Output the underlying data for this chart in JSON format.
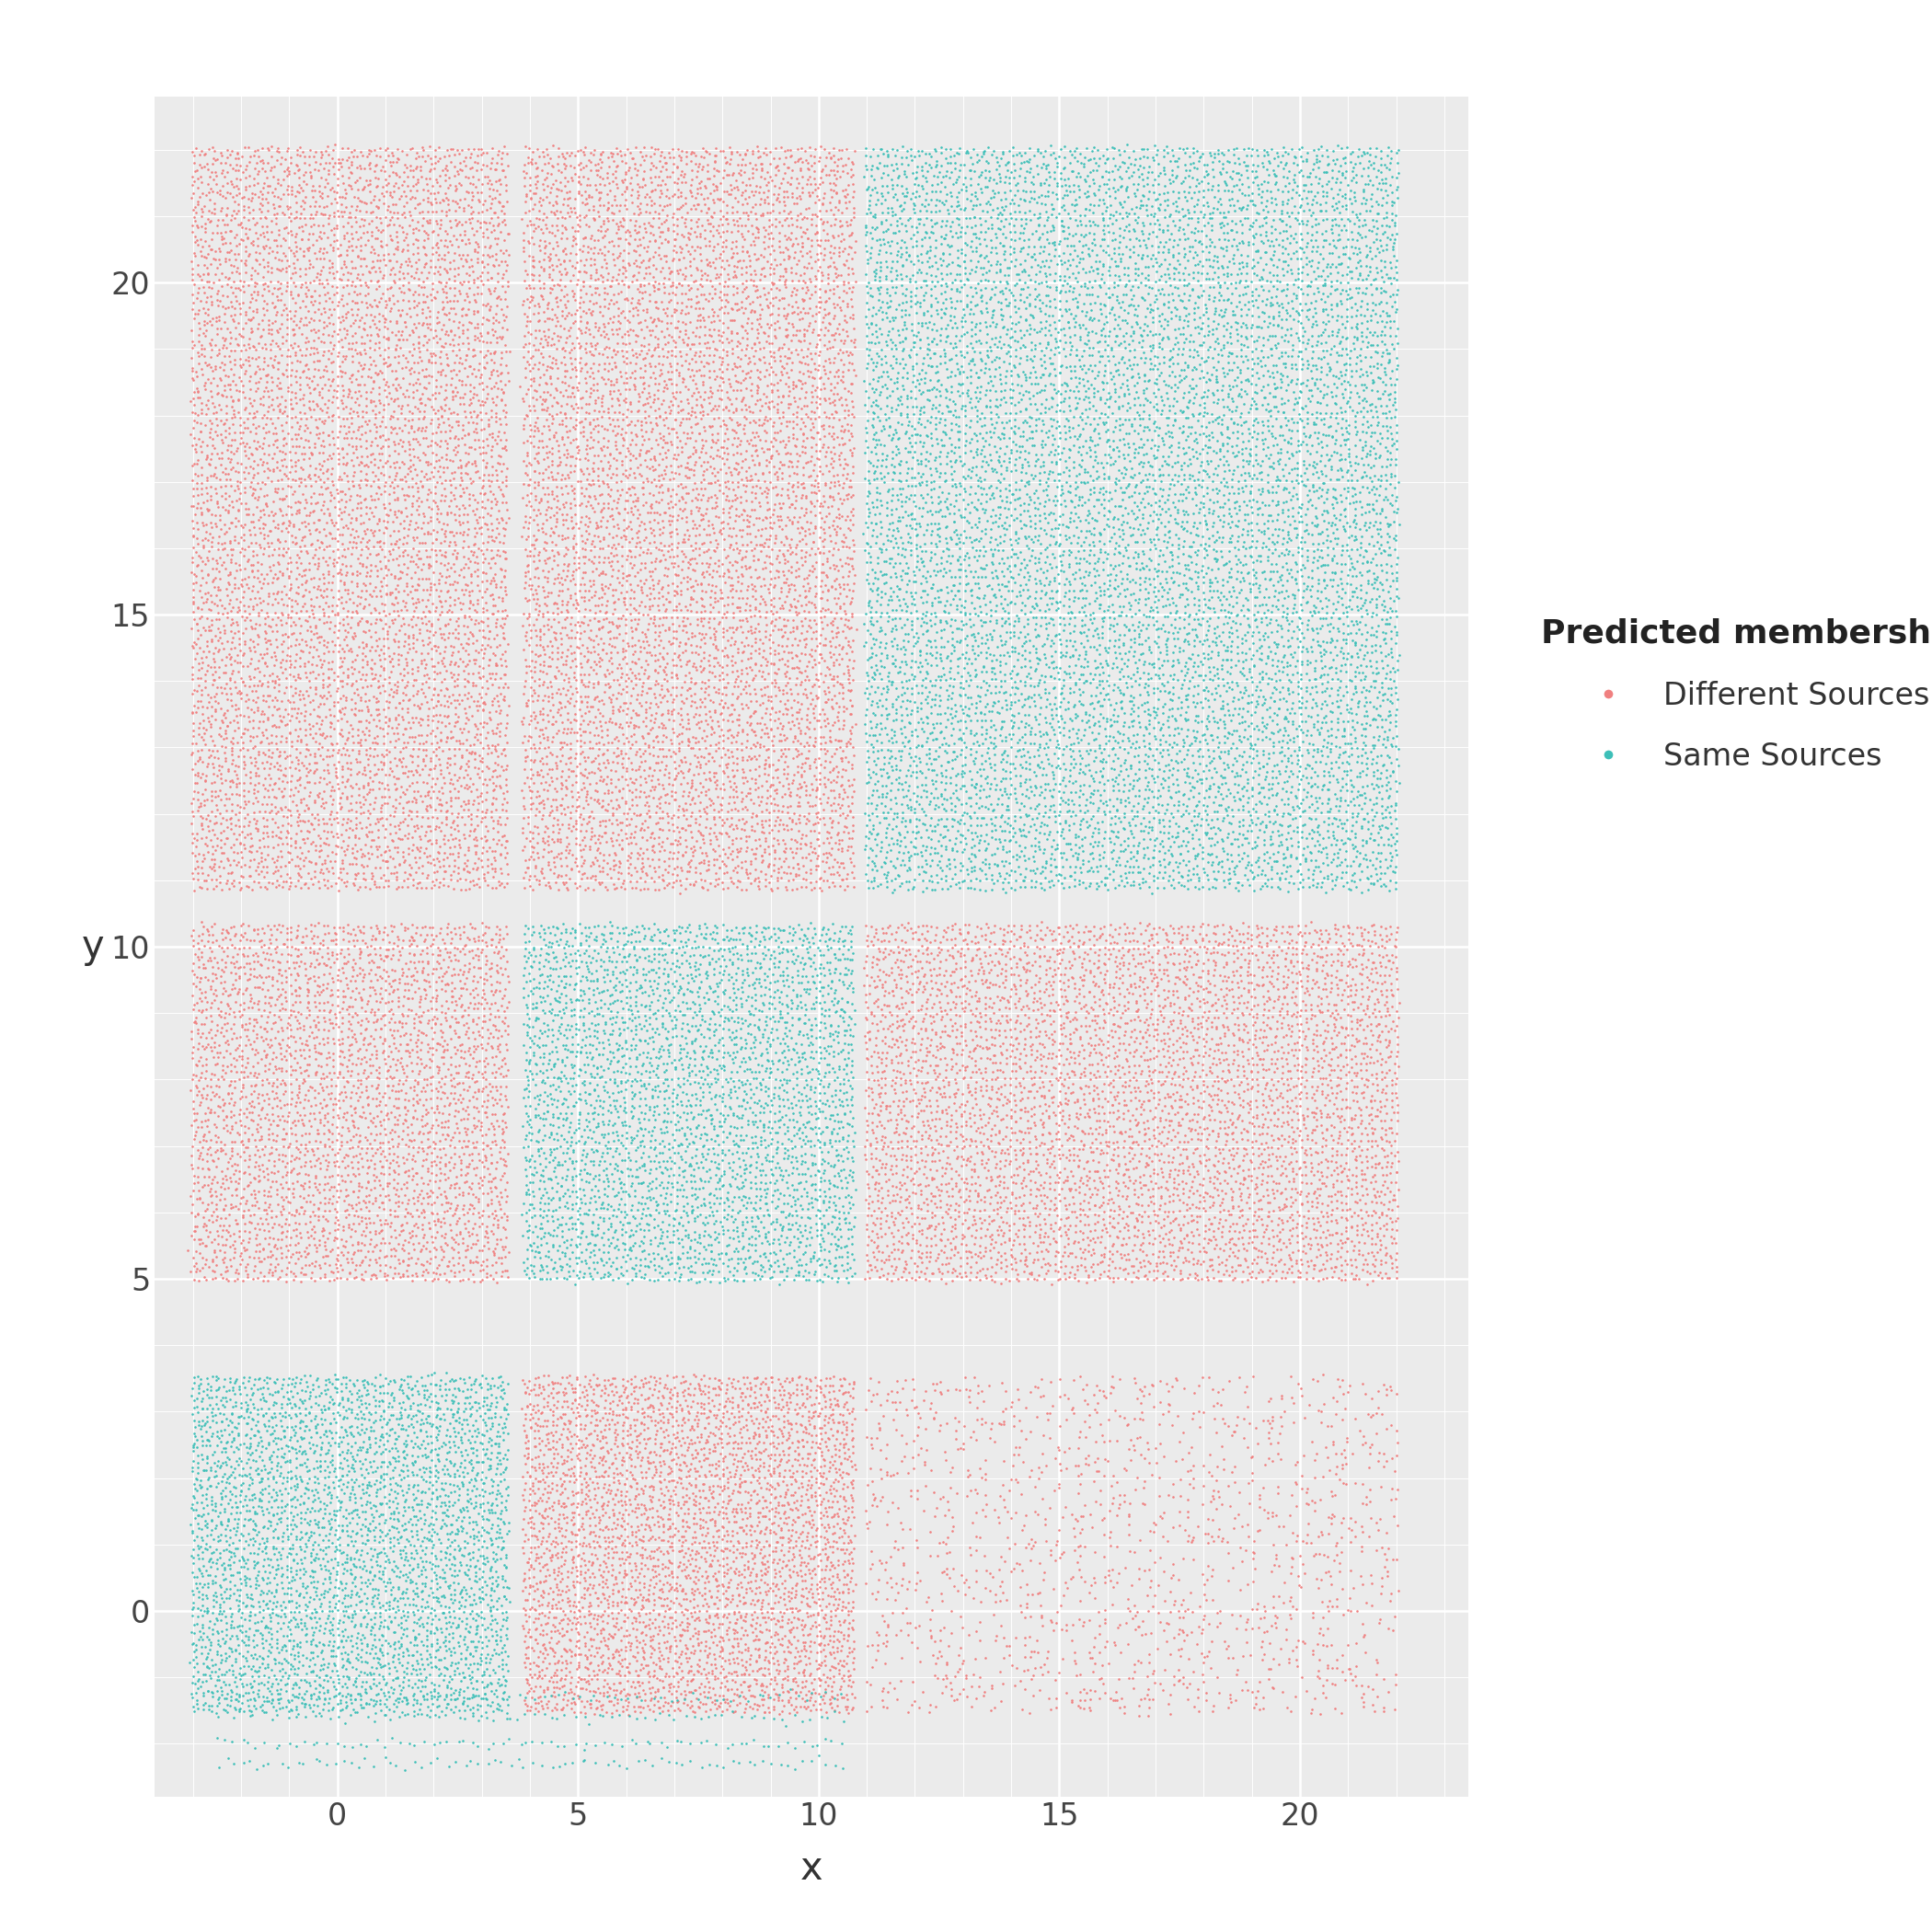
{
  "xlabel": "x",
  "ylabel": "y",
  "color_different": "#F08080",
  "color_same": "#3DBFB8",
  "bg_color": "#EBEBEB",
  "grid_color": "#FFFFFF",
  "legend_title": "Predicted membership",
  "legend_labels": [
    "Different Sources",
    "Same Sources"
  ],
  "xlim": [
    -3.8,
    23.5
  ],
  "ylim": [
    -2.8,
    22.8
  ],
  "xticks": [
    0,
    5,
    10,
    15,
    20
  ],
  "yticks": [
    0,
    5,
    10,
    15,
    20
  ],
  "marker_size": 3.5,
  "alpha": 1.0
}
